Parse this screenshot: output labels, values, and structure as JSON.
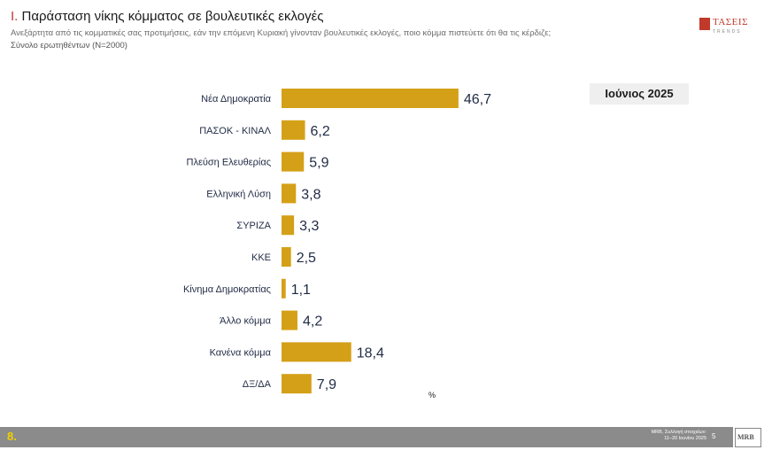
{
  "header": {
    "title_number": "I.",
    "title_text": "Παράσταση νίκης κόμματος σε βουλευτικές εκλογές",
    "question": "Ανεξάρτητα από τις κομματικές σας προτιμήσεις, εάν την επόμενη Κυριακή γίνονταν βουλευτικές εκλογές, ποιο κόμμα πιστεύετε ότι θα τις κέρδιζε;",
    "sample": "Σύνολο ερωτηθέντων (Ν=2000)"
  },
  "logo": {
    "name": "ΤΑΣΕΙΣ",
    "sub": "TRENDS"
  },
  "period_badge": "Ιούνιος 2025",
  "chart_data": {
    "type": "bar",
    "orientation": "horizontal",
    "categories": [
      "Νέα Δημοκρατία",
      "ΠΑΣΟΚ - ΚΙΝΑΛ",
      "Πλεύση Ελευθερίας",
      "Ελληνική Λύση",
      "ΣΥΡΙΖΑ",
      "ΚΚΕ",
      "Κίνημα Δημοκρατίας",
      "Άλλο κόμμα",
      "Κανένα κόμμα",
      "ΔΞ/ΔΑ"
    ],
    "values": [
      46.7,
      6.2,
      5.9,
      3.8,
      3.3,
      2.5,
      1.1,
      4.2,
      18.4,
      7.9
    ],
    "value_labels": [
      "46,7",
      "6,2",
      "5,9",
      "3,8",
      "3,3",
      "2,5",
      "1,1",
      "4,2",
      "18,4",
      "7,9"
    ],
    "unit_label": "%",
    "bar_color": "#d4a017",
    "xlim": [
      0,
      50
    ]
  },
  "footer": {
    "slide_number": "8.",
    "source_line1": "MRB, Συλλογή στοιχείων:",
    "source_line2": "11–20 Ιουνίου 2025",
    "page": "5",
    "logo_text": "MRB"
  }
}
